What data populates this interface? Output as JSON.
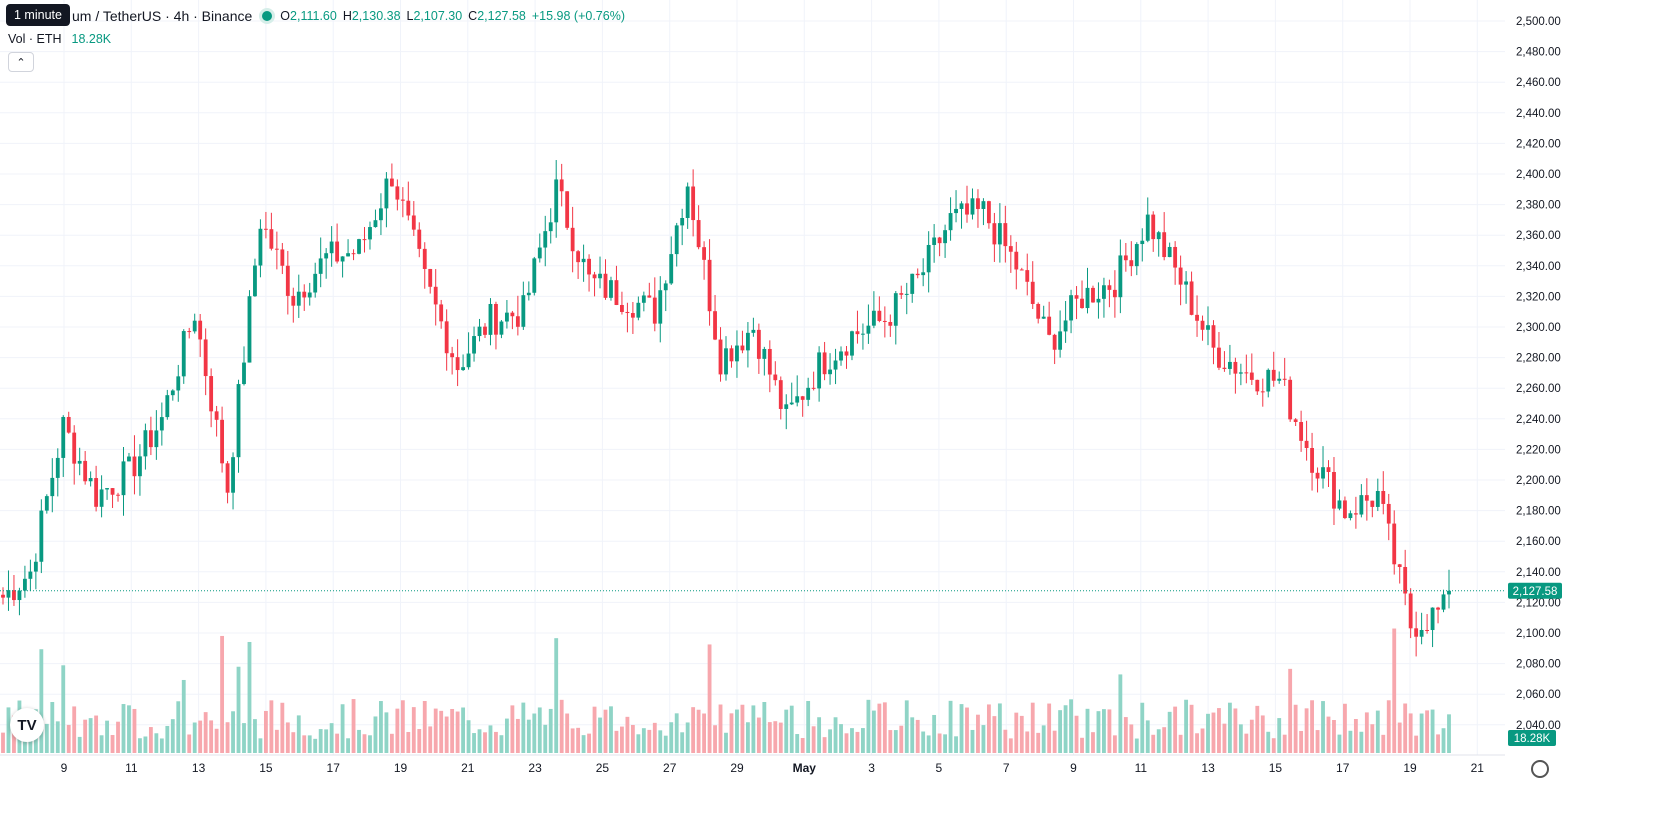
{
  "header": {
    "symbol": "um / TetherUS · 4h · Binance",
    "open_label": "O",
    "open": "2,111.60",
    "high_label": "H",
    "high": "2,130.38",
    "low_label": "L",
    "low": "2,107.30",
    "close_label": "C",
    "close": "2,127.58",
    "change": "+15.98 (+0.76%)",
    "tooltip": "1 minute"
  },
  "volume_legend": {
    "label": "Vol · ETH",
    "value": "18.28K"
  },
  "price_badge": "2,127.58",
  "volume_badge": "18.28K",
  "logo_text": "TV",
  "colors": {
    "up": "#089981",
    "down": "#f23645",
    "up_vol": "#8fd4c6",
    "down_vol": "#f7a7ad",
    "grid": "#f0f3fa"
  },
  "chart_data": {
    "type": "candlestick",
    "timeframe": "4h",
    "y_axis": {
      "range": [
        2020,
        2500
      ],
      "ticks": [
        "2,500.00",
        "2,480.00",
        "2,460.00",
        "2,440.00",
        "2,420.00",
        "2,400.00",
        "2,380.00",
        "2,360.00",
        "2,340.00",
        "2,320.00",
        "2,300.00",
        "2,280.00",
        "2,260.00",
        "2,240.00",
        "2,220.00",
        "2,200.00",
        "2,180.00",
        "2,160.00",
        "2,140.00",
        "2,120.00",
        "2,100.00",
        "2,080.00",
        "2,060.00",
        "2,040.00"
      ]
    },
    "x_axis": {
      "ticks": [
        "9",
        "11",
        "13",
        "15",
        "17",
        "19",
        "21",
        "23",
        "25",
        "27",
        "29",
        "May",
        "3",
        "5",
        "7",
        "9",
        "11",
        "13",
        "15",
        "17",
        "19",
        "21"
      ]
    },
    "last_price": 2127.58,
    "anchors": [
      {
        "date": "Apr 7",
        "close": 2140
      },
      {
        "date": "Apr 8",
        "close": 2235
      },
      {
        "date": "Apr 9",
        "close": 2190
      },
      {
        "date": "Apr 10",
        "close": 2205
      },
      {
        "date": "Apr 11",
        "close": 2240
      },
      {
        "date": "Apr 12",
        "close": 2310
      },
      {
        "date": "Apr 13",
        "close": 2195
      },
      {
        "date": "Apr 14",
        "close": 2370
      },
      {
        "date": "Apr 15",
        "close": 2320
      },
      {
        "date": "Apr 16",
        "close": 2345
      },
      {
        "date": "Apr 17",
        "close": 2350
      },
      {
        "date": "Apr 18",
        "close": 2400
      },
      {
        "date": "Apr 19",
        "close": 2330
      },
      {
        "date": "Apr 20",
        "close": 2275
      },
      {
        "date": "Apr 21",
        "close": 2305
      },
      {
        "date": "Apr 22",
        "close": 2310
      },
      {
        "date": "Apr 23",
        "close": 2390
      },
      {
        "date": "Apr 24",
        "close": 2330
      },
      {
        "date": "Apr 25",
        "close": 2320
      },
      {
        "date": "Apr 26",
        "close": 2310
      },
      {
        "date": "Apr 27",
        "close": 2395
      },
      {
        "date": "Apr 28",
        "close": 2280
      },
      {
        "date": "Apr 29",
        "close": 2300
      },
      {
        "date": "Apr 30",
        "close": 2240
      },
      {
        "date": "May 1",
        "close": 2275
      },
      {
        "date": "May 2",
        "close": 2295
      },
      {
        "date": "May 3",
        "close": 2305
      },
      {
        "date": "May 4",
        "close": 2330
      },
      {
        "date": "May 5",
        "close": 2370
      },
      {
        "date": "May 6",
        "close": 2375
      },
      {
        "date": "May 7",
        "close": 2340
      },
      {
        "date": "May 8",
        "close": 2290
      },
      {
        "date": "May 9",
        "close": 2320
      },
      {
        "date": "May 10",
        "close": 2330
      },
      {
        "date": "May 11",
        "close": 2370
      },
      {
        "date": "May 12",
        "close": 2330
      },
      {
        "date": "May 13",
        "close": 2285
      },
      {
        "date": "May 14",
        "close": 2270
      },
      {
        "date": "May 15",
        "close": 2265
      },
      {
        "date": "May 16",
        "close": 2215
      },
      {
        "date": "May 17",
        "close": 2180
      },
      {
        "date": "May 18",
        "close": 2190
      },
      {
        "date": "May 19",
        "close": 2105
      },
      {
        "date": "May 20",
        "close": 2115
      },
      {
        "date": "May 20 (last)",
        "close": 2127.58
      }
    ]
  }
}
